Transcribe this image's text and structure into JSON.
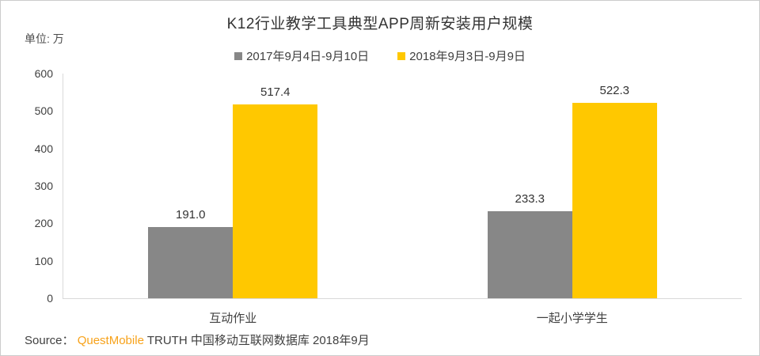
{
  "header": {
    "title": "K12行业教学工具典型APP周新安装用户规模",
    "unit_label": "单位: 万"
  },
  "chart_data": {
    "type": "bar",
    "title": "K12行业教学工具典型APP周新安装用户规模",
    "unit": "单位: 万",
    "categories": [
      "互动作业",
      "一起小学学生"
    ],
    "series": [
      {
        "name": "2017年9月4日-9月10日",
        "color": "#878787",
        "values": [
          191.0,
          233.3
        ]
      },
      {
        "name": "2018年9月3日-9月9日",
        "color": "#FFC800",
        "values": [
          517.4,
          522.3
        ]
      }
    ],
    "value_label_decimals": 1,
    "xlabel": "",
    "ylabel": "单位: 万",
    "ylim": [
      0,
      600
    ],
    "yticks": [
      0,
      100,
      200,
      300,
      400,
      500,
      600
    ],
    "grid": false,
    "legend_position": "top"
  },
  "footer": {
    "source_prefix": "Source：",
    "source_brand": "QuestMobile",
    "source_suffix": " TRUTH 中国移动互联网数据库 2018年9月",
    "brand_color": "#F7A21A"
  },
  "colors": {
    "axis": "#d9d9d9",
    "frame_border": "#cccccc",
    "text": "#404040"
  }
}
